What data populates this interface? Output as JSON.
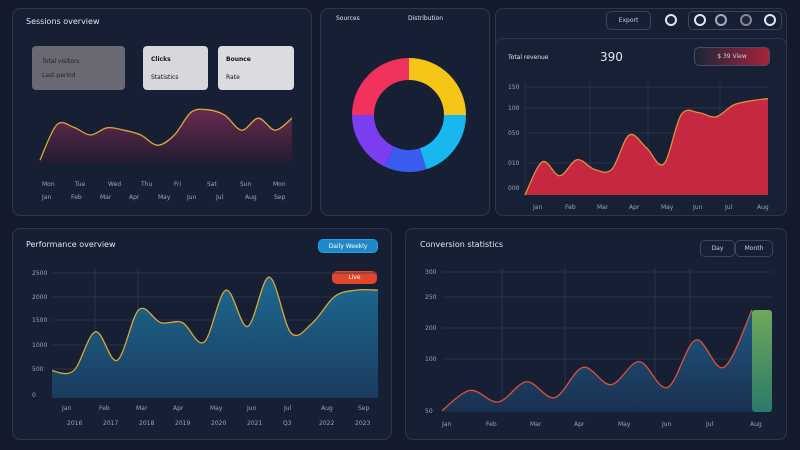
{
  "colors": {
    "background": "#121a2b",
    "panel": "#161f33",
    "accent_red": "#c62741",
    "accent_teal": "#1f6d92",
    "accent_blue": "#1e88c8",
    "badge_orange": "#e2462a"
  },
  "panel_a": {
    "title": "Sessions overview",
    "cards": [
      {
        "line1": "Total visitors",
        "line2": "Last period"
      },
      {
        "line1": "Clicks",
        "line2": "Statistics"
      },
      {
        "line1": "Bounce",
        "line2": "Rate"
      }
    ],
    "x_labels_top": [
      "Mon",
      "Tue",
      "Wed",
      "Thu",
      "Fri",
      "Sat",
      "Sun",
      "Mon"
    ],
    "x_labels": [
      "Jan",
      "Feb",
      "Mar",
      "Apr",
      "May",
      "Jun",
      "Jul",
      "Aug",
      "Sep"
    ]
  },
  "panel_b": {
    "title_left": "Sources",
    "title_right": "Distribution"
  },
  "toolbar": {
    "button": "Export",
    "icons": [
      "settings-icon",
      "user-icon",
      "bell-icon",
      "grid-icon",
      "power-icon"
    ]
  },
  "panel_c": {
    "title": "Total revenue",
    "value": "390",
    "button": "$ 39 View",
    "y_labels": [
      "150",
      "100",
      "050",
      "010",
      "000"
    ],
    "x_labels": [
      "Jan",
      "Feb",
      "Mar",
      "Apr",
      "May",
      "Jun",
      "Jul",
      "Aug"
    ]
  },
  "panel_d": {
    "title": "Performance overview",
    "button": "Daily  Weekly",
    "badge": "Live",
    "y_labels": [
      "2500",
      "2000",
      "1500",
      "1000",
      "500",
      "0"
    ],
    "x_labels_top": [
      "Jan",
      "Feb",
      "Mar",
      "Apr",
      "May",
      "Jun",
      "Jul",
      "Aug",
      "Sep"
    ],
    "x_labels": [
      "2016",
      "2017",
      "2018",
      "2019",
      "2020",
      "2021",
      "Q3",
      "2022",
      "2023"
    ]
  },
  "panel_e": {
    "title": "Conversion statistics",
    "buttons": [
      "Day",
      "Month"
    ],
    "y_labels": [
      "300",
      "250",
      "200",
      "100",
      "50"
    ],
    "x_labels": [
      "Jan",
      "Feb",
      "Mar",
      "Apr",
      "May",
      "Jun",
      "Jul",
      "Aug"
    ]
  },
  "chart_data": [
    {
      "type": "area",
      "series": [
        {
          "values": [
            8,
            67,
            63,
            50,
            62,
            58,
            50,
            33,
            50,
            88,
            92,
            83,
            58,
            78,
            58,
            78
          ]
        }
      ]
    },
    {
      "type": "pie",
      "donut": true,
      "values": [
        25,
        20,
        12,
        18,
        25
      ],
      "colors": [
        "#f5c518",
        "#18b7f0",
        "#3a5cf0",
        "#7a3df0",
        "#f0325c"
      ]
    },
    {
      "type": "area",
      "series": [
        {
          "values": [
            0,
            31,
            18,
            33,
            24,
            24,
            56,
            44,
            29,
            75,
            77,
            73,
            84,
            88,
            90
          ]
        }
      ]
    },
    {
      "type": "area",
      "series": [
        {
          "values": [
            21,
            21,
            51,
            29,
            68,
            58,
            58,
            43,
            83,
            55,
            93,
            50,
            58,
            78,
            83,
            83
          ]
        }
      ]
    },
    {
      "type": "area",
      "series": [
        {
          "values": [
            1,
            15,
            7,
            21,
            10,
            31,
            19,
            35,
            17,
            50,
            31,
            71
          ]
        }
      ]
    }
  ]
}
